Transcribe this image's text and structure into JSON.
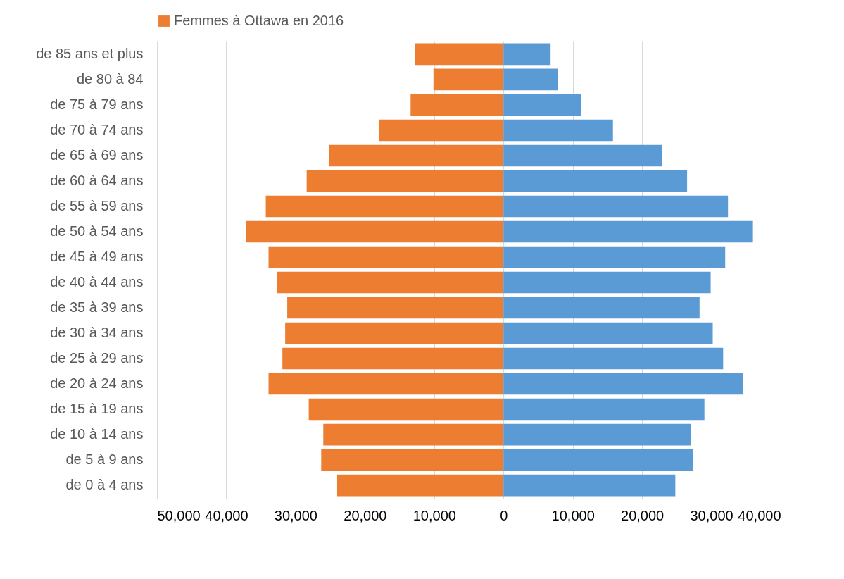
{
  "chart_data": {
    "type": "bar",
    "orientation": "horizontal",
    "categories": [
      "de 85 ans et plus",
      "de 80 à 84",
      "de 75 à 79 ans",
      "de 70 à 74 ans",
      "de 65 à 69 ans",
      "de 60 à 64 ans",
      "de 55 à 59 ans",
      "de 50 à 54 ans",
      "de 45 à 49 ans",
      "de 40 à 44 ans",
      "de 35 à 39 ans",
      "de 30 à 34 ans",
      "de 25 à 29 ans",
      "de 20 à 24 ans",
      "de 15 à 19 ans",
      "de 10 à 14 ans",
      "de 5 à 9 ans",
      "de 0 à 4 ans"
    ],
    "series": [
      {
        "name": "Femmes à Ottawa en 2016",
        "color": "#ed7d31",
        "values": [
          -12800,
          -10100,
          -13400,
          -18000,
          -25200,
          -28400,
          -34300,
          -37200,
          -33900,
          -32700,
          -31200,
          -31500,
          -31900,
          -33900,
          -28100,
          -26000,
          -26300,
          -24000
        ]
      },
      {
        "color": "#5b9bd5",
        "values": [
          6800,
          7800,
          11200,
          15800,
          22900,
          26500,
          32400,
          36000,
          32000,
          29900,
          28300,
          30200,
          31700,
          34600,
          29000,
          27000,
          27400,
          24800
        ]
      }
    ],
    "xlim": [
      -50000,
      40000
    ],
    "xticks": [
      {
        "value": -50000,
        "label": "50,000"
      },
      {
        "value": -40000,
        "label": "40,000"
      },
      {
        "value": -30000,
        "label": "30,000"
      },
      {
        "value": -20000,
        "label": "20,000"
      },
      {
        "value": -10000,
        "label": "10,000"
      },
      0,
      {
        "value": 10000,
        "label": "10,000"
      },
      {
        "value": 20000,
        "label": "20,000"
      },
      {
        "value": 30000,
        "label": "30,000"
      },
      {
        "value": 40000,
        "label": "40,000"
      }
    ],
    "grid": "x",
    "legend": "top",
    "stacked": true
  }
}
